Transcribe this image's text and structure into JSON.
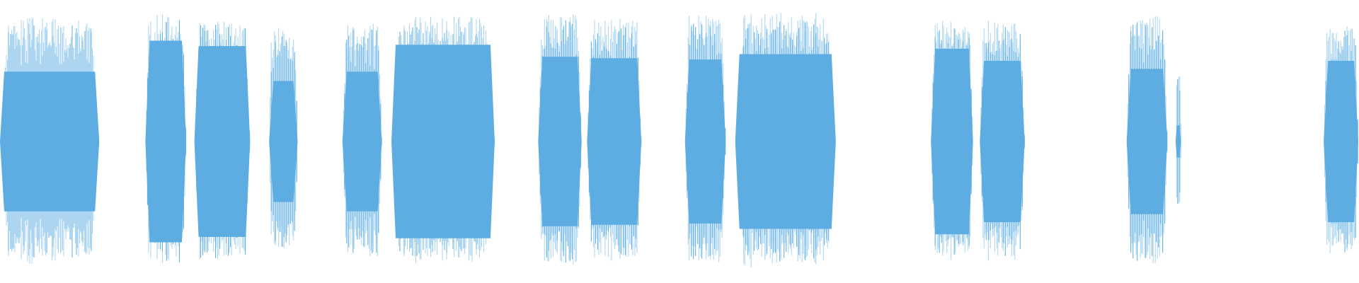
{
  "waveform": {
    "colors": {
      "background": "#ffffff",
      "peak": "#5dade2",
      "rms": "#5dade2",
      "light": "#a9d4f0"
    },
    "segments": [
      {
        "start": 0.0,
        "end": 0.073,
        "peak": 0.93,
        "rms": 0.52,
        "seed": 3
      },
      {
        "start": 0.107,
        "end": 0.137,
        "peak": 0.95,
        "rms": 0.75,
        "seed": 7
      },
      {
        "start": 0.143,
        "end": 0.184,
        "peak": 0.92,
        "rms": 0.71,
        "seed": 11
      },
      {
        "start": 0.198,
        "end": 0.219,
        "peak": 0.85,
        "rms": 0.45,
        "seed": 13
      },
      {
        "start": 0.252,
        "end": 0.281,
        "peak": 0.88,
        "rms": 0.52,
        "seed": 17
      },
      {
        "start": 0.288,
        "end": 0.364,
        "peak": 0.93,
        "rms": 0.72,
        "seed": 19
      },
      {
        "start": 0.396,
        "end": 0.428,
        "peak": 0.95,
        "rms": 0.63,
        "seed": 23
      },
      {
        "start": 0.432,
        "end": 0.472,
        "peak": 0.92,
        "rms": 0.62,
        "seed": 29
      },
      {
        "start": 0.504,
        "end": 0.534,
        "peak": 0.94,
        "rms": 0.61,
        "seed": 31
      },
      {
        "start": 0.541,
        "end": 0.615,
        "peak": 0.96,
        "rms": 0.65,
        "seed": 37
      },
      {
        "start": 0.685,
        "end": 0.716,
        "peak": 0.92,
        "rms": 0.69,
        "seed": 41
      },
      {
        "start": 0.721,
        "end": 0.754,
        "peak": 0.9,
        "rms": 0.6,
        "seed": 43
      },
      {
        "start": 0.829,
        "end": 0.859,
        "peak": 0.94,
        "rms": 0.54,
        "seed": 47
      },
      {
        "start": 0.865,
        "end": 0.869,
        "peak": 0.55,
        "rms": 0.12,
        "seed": 53
      },
      {
        "start": 0.974,
        "end": 1.0,
        "peak": 0.88,
        "rms": 0.6,
        "seed": 59
      }
    ]
  }
}
